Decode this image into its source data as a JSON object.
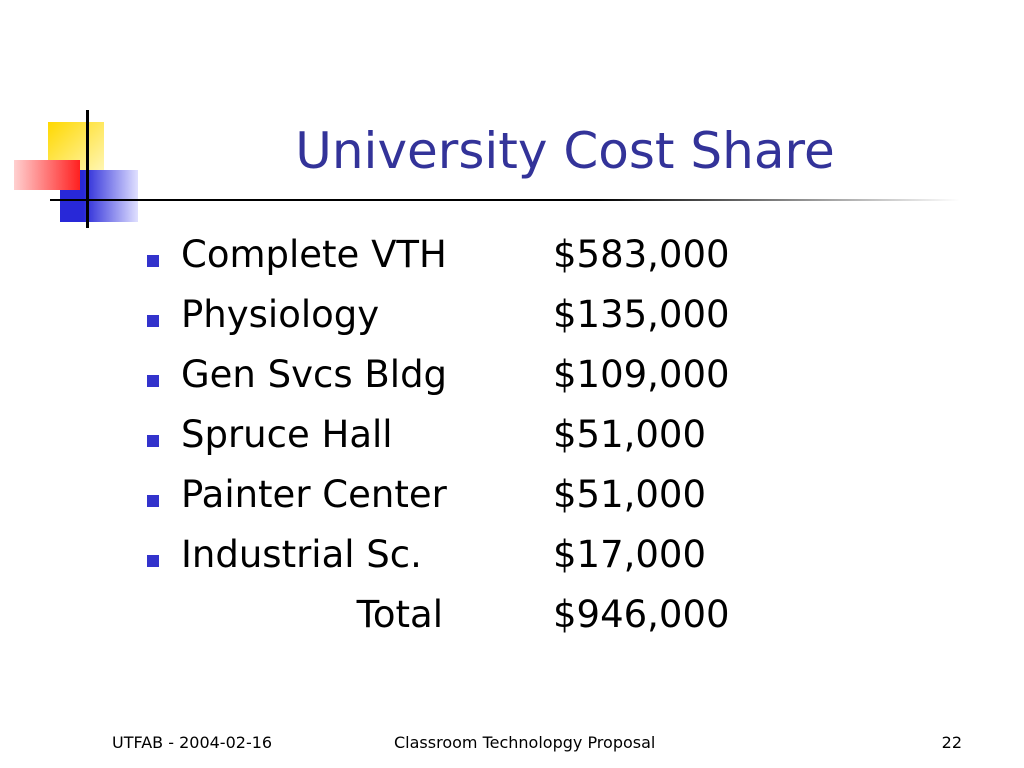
{
  "title": "University Cost Share",
  "items": [
    {
      "label": "Complete VTH",
      "amount": "$583,000"
    },
    {
      "label": "Physiology",
      "amount": "$135,000"
    },
    {
      "label": "Gen Svcs Bldg",
      "amount": "$109,000"
    },
    {
      "label": "Spruce Hall",
      "amount": "$51,000"
    },
    {
      "label": "Painter Center",
      "amount": "$51,000"
    },
    {
      "label": "Industrial Sc.",
      "amount": "$17,000"
    }
  ],
  "total": {
    "label": "Total",
    "amount": "$946,000"
  },
  "footer": {
    "left": "UTFAB - 2004-02-16",
    "center": "Classroom Technolopgy Proposal",
    "right": "22"
  }
}
